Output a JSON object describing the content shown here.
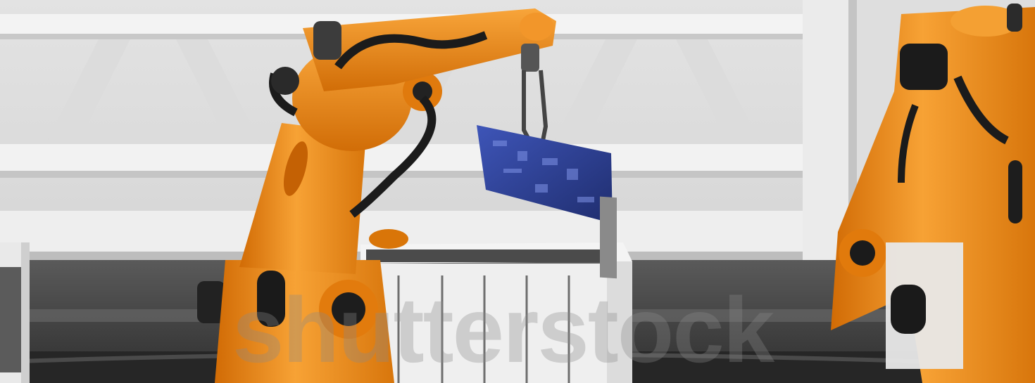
{
  "scene": {
    "description_kind": "photo",
    "watermark": {
      "text": "shutterstock"
    }
  },
  "colors": {
    "wall": "#e6e6e6",
    "beam": "#f1f1f1",
    "floor": "#3d3d3d",
    "robot_orange": "#f08a12",
    "robot_dark": "#1c1c1c",
    "board_blue": "#2c3e8e",
    "rack_white": "#efefef"
  }
}
